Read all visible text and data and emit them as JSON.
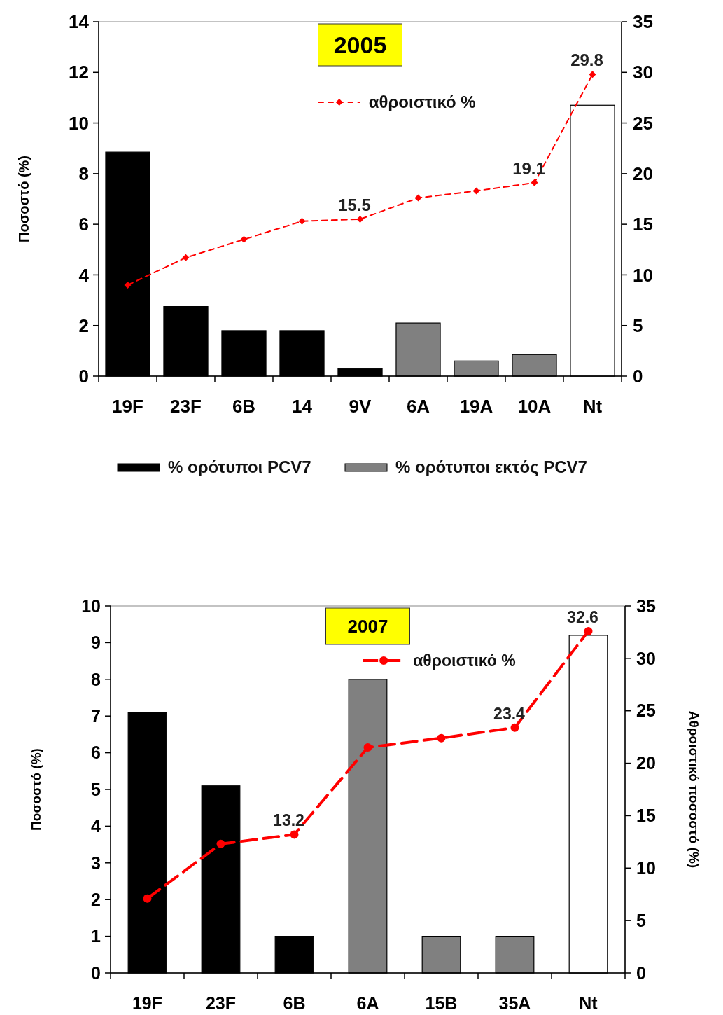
{
  "chart_data": [
    {
      "type": "bar",
      "title": "2005",
      "ylabel": "Ποσοστό (%)",
      "categories": [
        "19F",
        "23F",
        "6B",
        "14",
        "9V",
        "6A",
        "19A",
        "10A",
        "Nt"
      ],
      "legend": "bottom",
      "ylim": [
        0,
        14
      ],
      "yticks": [
        0,
        2,
        4,
        6,
        8,
        10,
        12,
        14
      ],
      "y2lim": [
        0,
        35
      ],
      "y2ticks": [
        0,
        5,
        10,
        15,
        20,
        25,
        30,
        35
      ],
      "line_style": "dashed",
      "marker": "diamond",
      "series": [
        {
          "name": "% ορότυποι PCV7",
          "color": "#000000",
          "values": [
            8.85,
            2.75,
            1.8,
            1.8,
            0.3,
            null,
            null,
            null,
            null
          ]
        },
        {
          "name": "% ορότυποι εκτός PCV7",
          "color": "#808080",
          "values": [
            null,
            null,
            null,
            null,
            null,
            2.1,
            0.6,
            0.85,
            null
          ]
        },
        {
          "color": "#ffffff",
          "values": [
            null,
            null,
            null,
            null,
            null,
            null,
            null,
            null,
            10.7
          ]
        },
        {
          "type": "line",
          "axis": "y2",
          "name": "αθροιστικό %",
          "color": "#ff0000",
          "values": [
            9.0,
            11.7,
            13.5,
            15.3,
            15.5,
            17.6,
            18.3,
            19.1,
            29.8
          ],
          "value_labels": [
            null,
            null,
            null,
            null,
            "15.5",
            null,
            null,
            "19.1",
            "29.8"
          ]
        }
      ]
    },
    {
      "type": "bar",
      "title": "2007",
      "ylabel": "Ποσοστό (%)",
      "y2label": "Αθροιστικό ποσοστό (%)",
      "categories": [
        "19F",
        "23F",
        "6B",
        "6A",
        "15B",
        "35A",
        "Nt"
      ],
      "legend": "top",
      "ylim": [
        0,
        10
      ],
      "yticks": [
        0,
        1,
        2,
        3,
        4,
        5,
        6,
        7,
        8,
        9,
        10
      ],
      "y2lim": [
        0,
        35
      ],
      "y2ticks": [
        0,
        5,
        10,
        15,
        20,
        25,
        30,
        35
      ],
      "line_style": "dashed",
      "marker": "circle",
      "series": [
        {
          "color": "#000000",
          "values": [
            7.1,
            5.1,
            1,
            null,
            null,
            null,
            null
          ]
        },
        {
          "color": "#808080",
          "values": [
            null,
            null,
            null,
            8,
            1,
            1,
            null
          ]
        },
        {
          "color": "#ffffff",
          "values": [
            null,
            null,
            null,
            null,
            null,
            null,
            9.2
          ]
        },
        {
          "type": "line",
          "axis": "y2",
          "name": "αθροιστικό %",
          "color": "#ff0000",
          "values": [
            7.1,
            12.3,
            13.2,
            21.5,
            22.4,
            23.4,
            32.6
          ],
          "value_labels": [
            null,
            null,
            "13.2",
            null,
            null,
            "23.4",
            "32.6"
          ]
        }
      ]
    }
  ]
}
